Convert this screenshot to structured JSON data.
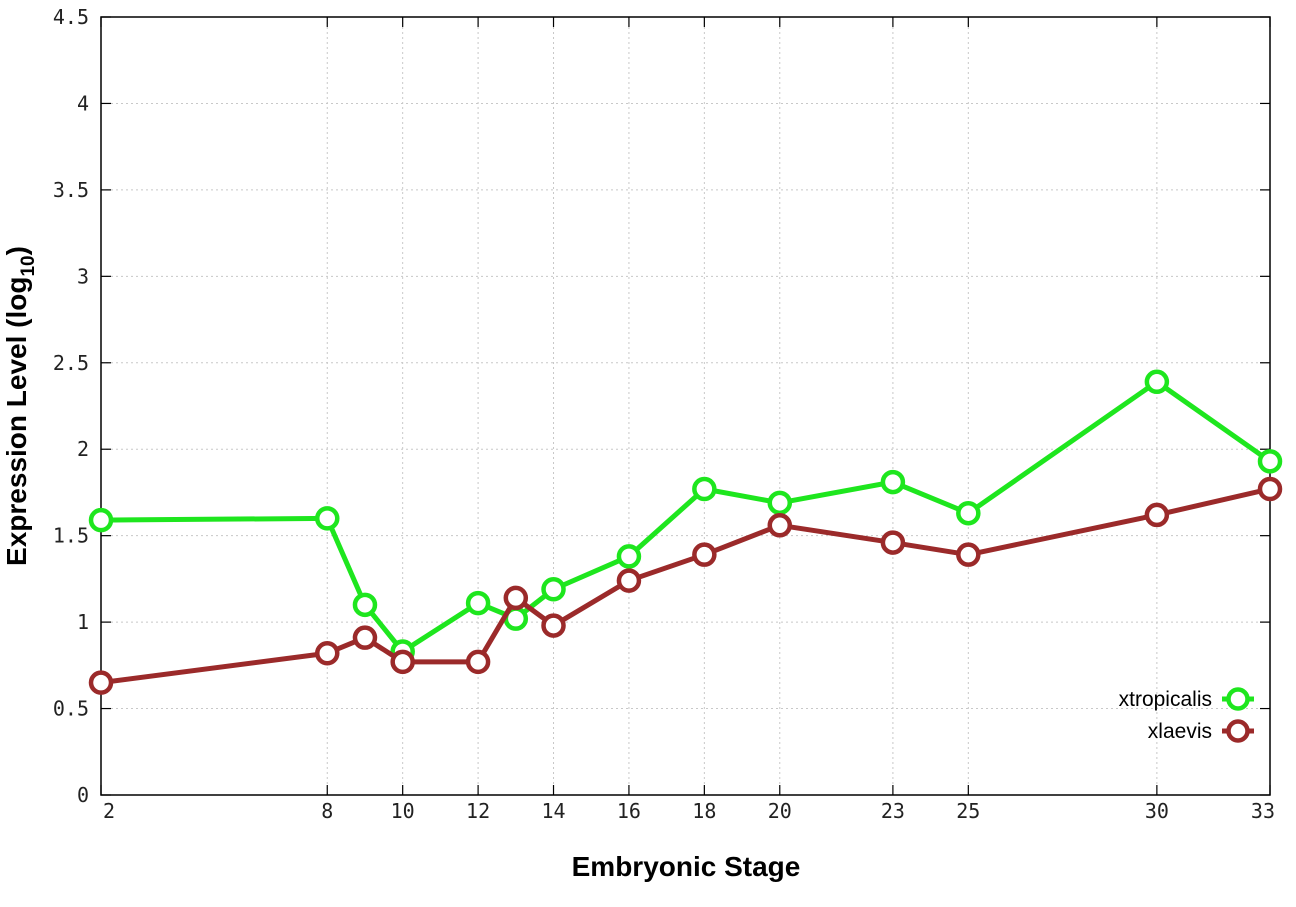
{
  "chart_data": {
    "type": "line",
    "xlabel": "Embryonic Stage",
    "ylabel_main": "Expression Level (log",
    "ylabel_sub": "10",
    "ylabel_close": ")",
    "xlim": [
      2,
      33
    ],
    "ylim": [
      0,
      4.5
    ],
    "x_ticks": [
      2,
      8,
      10,
      12,
      14,
      16,
      18,
      20,
      23,
      25,
      30,
      33
    ],
    "y_ticks": [
      0,
      0.5,
      1,
      1.5,
      2,
      2.5,
      3,
      3.5,
      4,
      4.5
    ],
    "y_tick_labels": [
      "0",
      "0.5",
      "1",
      "1.5",
      "2",
      "2.5",
      "3",
      "3.5",
      "4",
      "4.5"
    ],
    "grid": true,
    "legend_position": "bottom-right",
    "series": [
      {
        "name": "xtropicalis",
        "color": "#1ee61e",
        "x": [
          2,
          8,
          9,
          10,
          12,
          13,
          14,
          16,
          18,
          20,
          23,
          25,
          30,
          33
        ],
        "y": [
          1.59,
          1.6,
          1.1,
          0.83,
          1.11,
          1.02,
          1.19,
          1.38,
          1.77,
          1.69,
          1.81,
          1.63,
          2.39,
          1.93
        ]
      },
      {
        "name": "xlaevis",
        "color": "#9b2a2a",
        "x": [
          2,
          8,
          9,
          10,
          12,
          13,
          14,
          16,
          18,
          20,
          23,
          25,
          30,
          33
        ],
        "y": [
          0.65,
          0.82,
          0.91,
          0.77,
          0.77,
          1.14,
          0.98,
          1.24,
          1.39,
          1.56,
          1.46,
          1.39,
          1.62,
          1.77
        ]
      }
    ]
  }
}
